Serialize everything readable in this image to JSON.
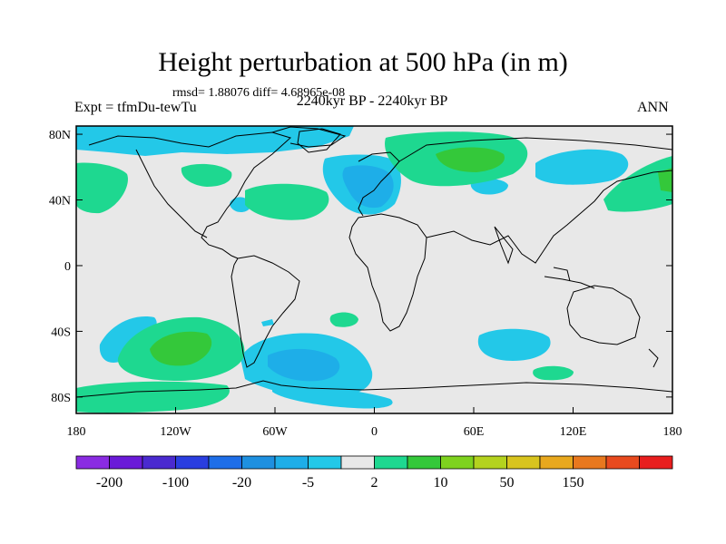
{
  "title": "Height perturbation at 500 hPa (in m)",
  "subtitle": "rmsd= 1.88076 diff= 4.68965e-08",
  "left_label": "Expt = tfmDu-tewTu",
  "center_label": "2240kyr BP - 2240kyr BP",
  "right_label": "ANN",
  "y_ticks": [
    {
      "label": "80N",
      "lat": 80
    },
    {
      "label": "40N",
      "lat": 40
    },
    {
      "label": "0",
      "lat": 0
    },
    {
      "label": "40S",
      "lat": -40
    },
    {
      "label": "80S",
      "lat": -80
    }
  ],
  "x_ticks": [
    {
      "label": "180",
      "lon": -180
    },
    {
      "label": "120W",
      "lon": -120
    },
    {
      "label": "60W",
      "lon": -60
    },
    {
      "label": "0",
      "lon": 0
    },
    {
      "label": "60E",
      "lon": 60
    },
    {
      "label": "120E",
      "lon": 120
    },
    {
      "label": "180",
      "lon": 180
    }
  ],
  "colorbar": {
    "colors": [
      "#8a2be2",
      "#6a1ad8",
      "#4a2ad0",
      "#2a3ee0",
      "#1e6ee8",
      "#1e90e0",
      "#1eaee8",
      "#23c8e8",
      "#e8e8e8",
      "#1ed890",
      "#34c83a",
      "#7ed21e",
      "#b4d21e",
      "#d8c41e",
      "#e8a81e",
      "#e8781e",
      "#e84a1e",
      "#e81e1e"
    ],
    "labels": [
      {
        "text": "-200",
        "boundary": 1
      },
      {
        "text": "-100",
        "boundary": 3
      },
      {
        "text": "-20",
        "boundary": 5
      },
      {
        "text": "-5",
        "boundary": 7
      },
      {
        "text": "2",
        "boundary": 9
      },
      {
        "text": "10",
        "boundary": 11
      },
      {
        "text": "50",
        "boundary": 13
      },
      {
        "text": "150",
        "boundary": 15
      }
    ]
  }
}
